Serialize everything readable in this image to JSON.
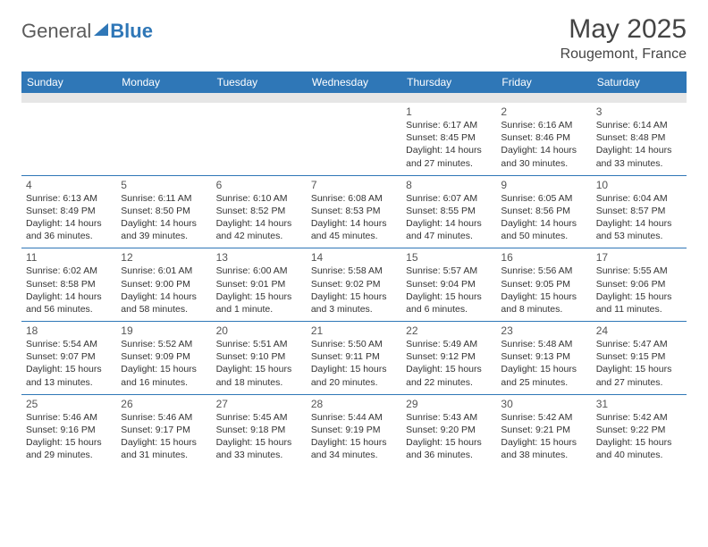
{
  "brand": {
    "part1": "General",
    "part2": "Blue"
  },
  "title": "May 2025",
  "location": "Rougemont, France",
  "colors": {
    "header_bg": "#2f77b7",
    "header_text": "#ffffff",
    "band_bg": "#e6e6e6",
    "divider": "#2f77b7",
    "text": "#333333"
  },
  "day_names": [
    "Sunday",
    "Monday",
    "Tuesday",
    "Wednesday",
    "Thursday",
    "Friday",
    "Saturday"
  ],
  "weeks": [
    [
      null,
      null,
      null,
      null,
      {
        "n": "1",
        "sr": "6:17 AM",
        "ss": "8:45 PM",
        "dl": "14 hours and 27 minutes."
      },
      {
        "n": "2",
        "sr": "6:16 AM",
        "ss": "8:46 PM",
        "dl": "14 hours and 30 minutes."
      },
      {
        "n": "3",
        "sr": "6:14 AM",
        "ss": "8:48 PM",
        "dl": "14 hours and 33 minutes."
      }
    ],
    [
      {
        "n": "4",
        "sr": "6:13 AM",
        "ss": "8:49 PM",
        "dl": "14 hours and 36 minutes."
      },
      {
        "n": "5",
        "sr": "6:11 AM",
        "ss": "8:50 PM",
        "dl": "14 hours and 39 minutes."
      },
      {
        "n": "6",
        "sr": "6:10 AM",
        "ss": "8:52 PM",
        "dl": "14 hours and 42 minutes."
      },
      {
        "n": "7",
        "sr": "6:08 AM",
        "ss": "8:53 PM",
        "dl": "14 hours and 45 minutes."
      },
      {
        "n": "8",
        "sr": "6:07 AM",
        "ss": "8:55 PM",
        "dl": "14 hours and 47 minutes."
      },
      {
        "n": "9",
        "sr": "6:05 AM",
        "ss": "8:56 PM",
        "dl": "14 hours and 50 minutes."
      },
      {
        "n": "10",
        "sr": "6:04 AM",
        "ss": "8:57 PM",
        "dl": "14 hours and 53 minutes."
      }
    ],
    [
      {
        "n": "11",
        "sr": "6:02 AM",
        "ss": "8:58 PM",
        "dl": "14 hours and 56 minutes."
      },
      {
        "n": "12",
        "sr": "6:01 AM",
        "ss": "9:00 PM",
        "dl": "14 hours and 58 minutes."
      },
      {
        "n": "13",
        "sr": "6:00 AM",
        "ss": "9:01 PM",
        "dl": "15 hours and 1 minute."
      },
      {
        "n": "14",
        "sr": "5:58 AM",
        "ss": "9:02 PM",
        "dl": "15 hours and 3 minutes."
      },
      {
        "n": "15",
        "sr": "5:57 AM",
        "ss": "9:04 PM",
        "dl": "15 hours and 6 minutes."
      },
      {
        "n": "16",
        "sr": "5:56 AM",
        "ss": "9:05 PM",
        "dl": "15 hours and 8 minutes."
      },
      {
        "n": "17",
        "sr": "5:55 AM",
        "ss": "9:06 PM",
        "dl": "15 hours and 11 minutes."
      }
    ],
    [
      {
        "n": "18",
        "sr": "5:54 AM",
        "ss": "9:07 PM",
        "dl": "15 hours and 13 minutes."
      },
      {
        "n": "19",
        "sr": "5:52 AM",
        "ss": "9:09 PM",
        "dl": "15 hours and 16 minutes."
      },
      {
        "n": "20",
        "sr": "5:51 AM",
        "ss": "9:10 PM",
        "dl": "15 hours and 18 minutes."
      },
      {
        "n": "21",
        "sr": "5:50 AM",
        "ss": "9:11 PM",
        "dl": "15 hours and 20 minutes."
      },
      {
        "n": "22",
        "sr": "5:49 AM",
        "ss": "9:12 PM",
        "dl": "15 hours and 22 minutes."
      },
      {
        "n": "23",
        "sr": "5:48 AM",
        "ss": "9:13 PM",
        "dl": "15 hours and 25 minutes."
      },
      {
        "n": "24",
        "sr": "5:47 AM",
        "ss": "9:15 PM",
        "dl": "15 hours and 27 minutes."
      }
    ],
    [
      {
        "n": "25",
        "sr": "5:46 AM",
        "ss": "9:16 PM",
        "dl": "15 hours and 29 minutes."
      },
      {
        "n": "26",
        "sr": "5:46 AM",
        "ss": "9:17 PM",
        "dl": "15 hours and 31 minutes."
      },
      {
        "n": "27",
        "sr": "5:45 AM",
        "ss": "9:18 PM",
        "dl": "15 hours and 33 minutes."
      },
      {
        "n": "28",
        "sr": "5:44 AM",
        "ss": "9:19 PM",
        "dl": "15 hours and 34 minutes."
      },
      {
        "n": "29",
        "sr": "5:43 AM",
        "ss": "9:20 PM",
        "dl": "15 hours and 36 minutes."
      },
      {
        "n": "30",
        "sr": "5:42 AM",
        "ss": "9:21 PM",
        "dl": "15 hours and 38 minutes."
      },
      {
        "n": "31",
        "sr": "5:42 AM",
        "ss": "9:22 PM",
        "dl": "15 hours and 40 minutes."
      }
    ]
  ],
  "labels": {
    "sunrise": "Sunrise: ",
    "sunset": "Sunset: ",
    "daylight": "Daylight: "
  }
}
